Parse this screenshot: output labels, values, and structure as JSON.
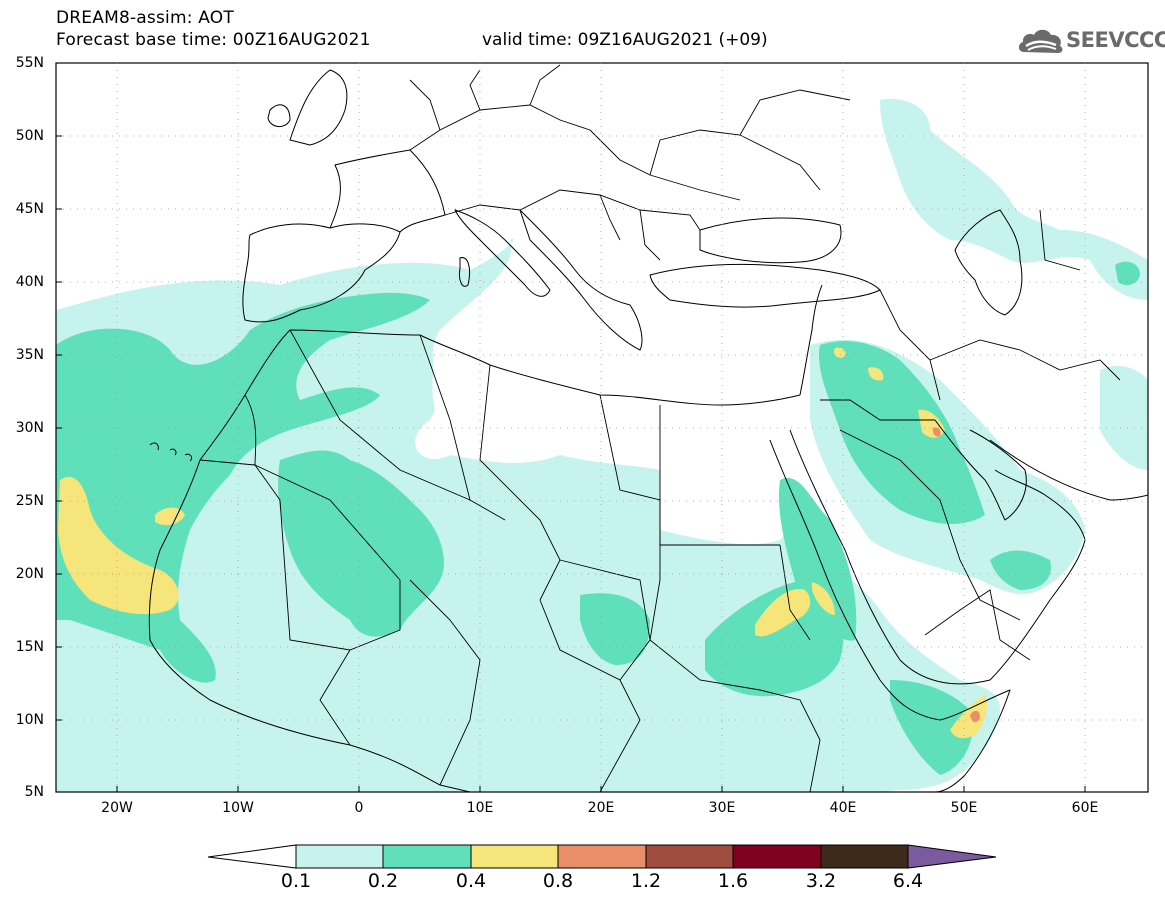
{
  "header": {
    "title_line1": "DREAM8-assim: AOT",
    "title_line2": "Forecast base time: 00Z16AUG2021",
    "valid_time": "valid time: 09Z16AUG2021 (+09)",
    "logo_text": "SEEVCCC",
    "logo_icon": "cloud-icon"
  },
  "map": {
    "lat_labels": [
      "55N",
      "50N",
      "45N",
      "40N",
      "35N",
      "30N",
      "25N",
      "20N",
      "15N",
      "10N",
      "5N"
    ],
    "lon_labels": [
      "20W",
      "10W",
      "0",
      "10E",
      "20E",
      "30E",
      "40E",
      "50E",
      "60E"
    ],
    "extent": {
      "lon_min": -25,
      "lon_max": 65,
      "lat_min": 5,
      "lat_max": 55
    }
  },
  "colorbar": {
    "ticks": [
      "0.1",
      "0.2",
      "0.4",
      "0.8",
      "1.2",
      "1.6",
      "3.2",
      "6.4"
    ],
    "colors": [
      "#c7f3ee",
      "#5fe0bb",
      "#f5e57a",
      "#e98e68",
      "#a04d3f",
      "#800020",
      "#3d2a1a",
      "#7b5aa0"
    ]
  }
}
